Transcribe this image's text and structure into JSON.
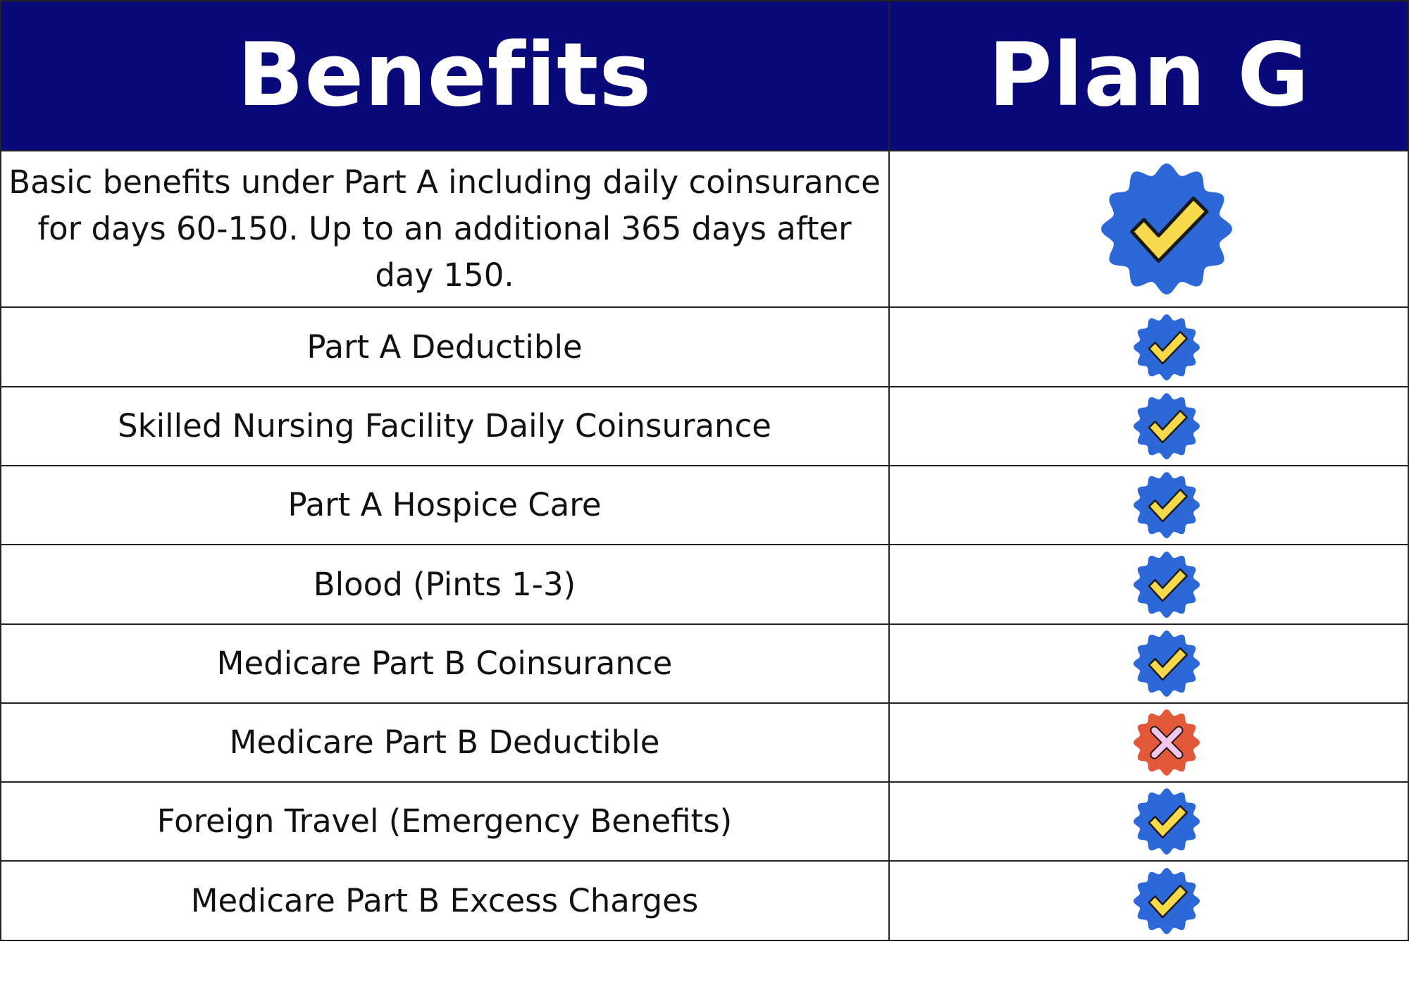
{
  "table": {
    "header": {
      "benefits": "Benefits",
      "plan": "Plan G"
    },
    "rows": [
      {
        "benefit": "Basic benefits under Part A including daily coinsurance for days 60-150.  Up to an additional 365 days after day 150.",
        "covered": true,
        "icon": "check-badge-icon"
      },
      {
        "benefit": "Part A Deductible",
        "covered": true,
        "icon": "check-badge-icon"
      },
      {
        "benefit": "Skilled Nursing Facility Daily Coinsurance",
        "covered": true,
        "icon": "check-badge-icon"
      },
      {
        "benefit": "Part A Hospice Care",
        "covered": true,
        "icon": "check-badge-icon"
      },
      {
        "benefit": "Blood (Pints 1-3)",
        "covered": true,
        "icon": "check-badge-icon"
      },
      {
        "benefit": "Medicare Part B Coinsurance",
        "covered": true,
        "icon": "check-badge-icon"
      },
      {
        "benefit": "Medicare Part B Deductible",
        "covered": false,
        "icon": "x-badge-icon"
      },
      {
        "benefit": "Foreign Travel (Emergency Benefits)",
        "covered": true,
        "icon": "check-badge-icon"
      },
      {
        "benefit": "Medicare Part B Excess Charges",
        "covered": true,
        "icon": "check-badge-icon"
      }
    ]
  },
  "colors": {
    "header_bg": "#090979",
    "header_text": "#ffffff",
    "check_badge": "#2d68d8",
    "check_mark": "#f7d94c",
    "x_badge": "#e4583a",
    "x_mark": "#f4c6ea"
  }
}
